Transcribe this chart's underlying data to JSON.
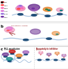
{
  "bg_color": "#f0f0f0",
  "panel_bg": "#ffffff",
  "panel_a_label": "a",
  "panel_b_label": "b",
  "panel_c_label": "c",
  "chromatin_color": "#aac4e0",
  "nucleosome_color": "#1f4e79",
  "colors": {
    "mll1": "#c00000",
    "wdr5": "#ff4444",
    "rbbp5": "#ff69b4",
    "ash2l": "#e07od6",
    "dpy30": "#9370db",
    "menin": "#7030a0",
    "pink_complex": "#e87dab",
    "purple_complex": "#6a3090",
    "purple_light": "#9b59b6",
    "orange": "#e87c1e",
    "teal": "#008080",
    "green_dark": "#2e7d32",
    "red_dark": "#8b0000",
    "gold": "#d4a000",
    "blue_med": "#3a7abf"
  }
}
